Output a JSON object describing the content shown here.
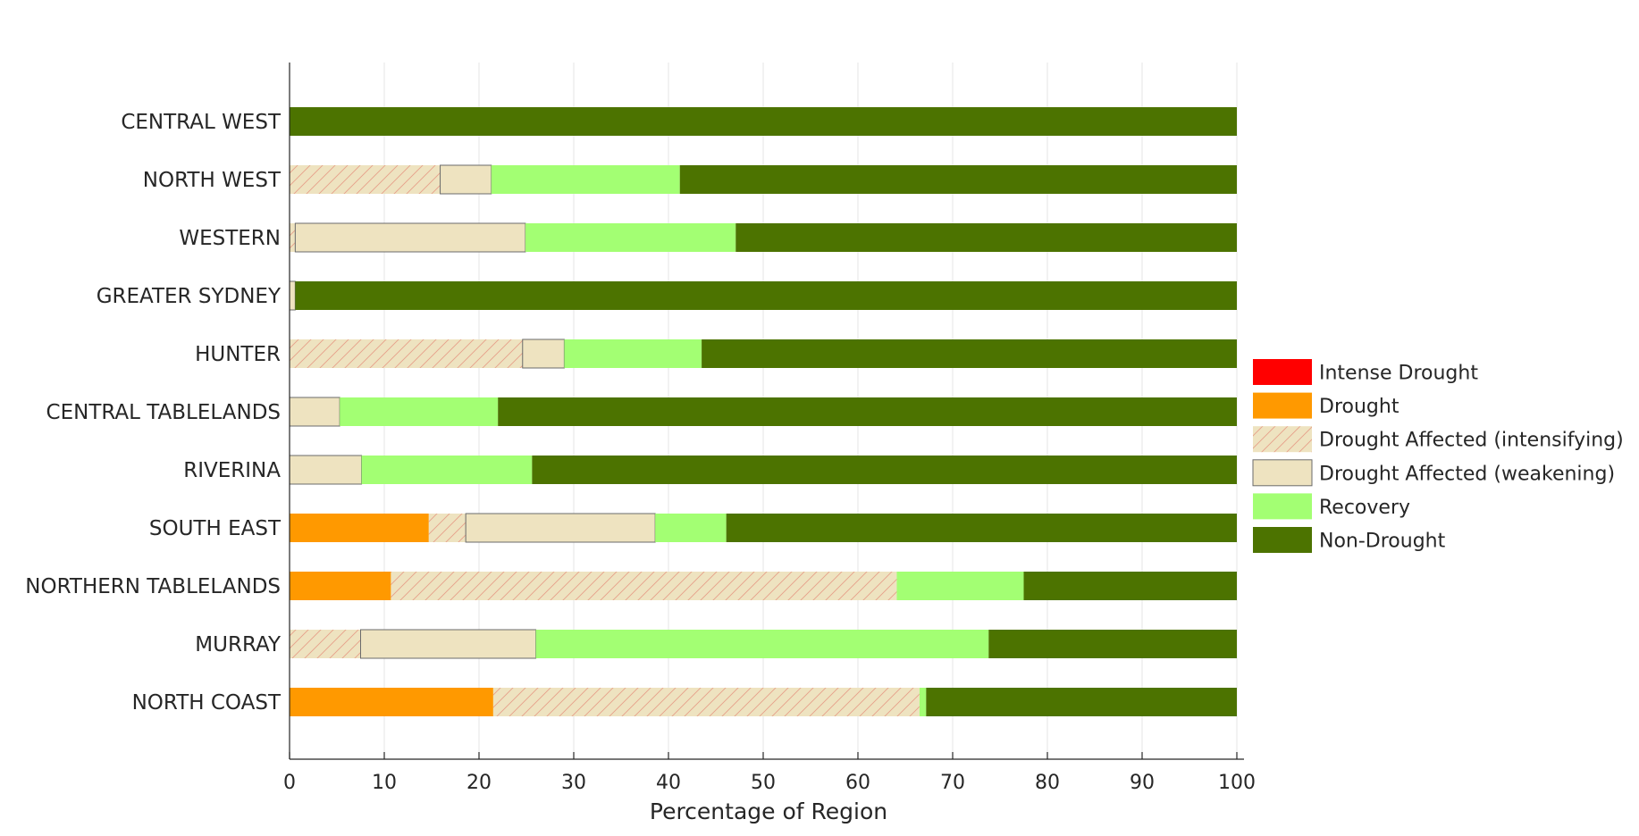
{
  "chart_data": {
    "type": "bar",
    "orientation": "horizontal",
    "stacked": true,
    "categories": [
      "CENTRAL WEST",
      "NORTH WEST",
      "WESTERN",
      "GREATER SYDNEY",
      "HUNTER",
      "CENTRAL TABLELANDS",
      "RIVERINA",
      "SOUTH EAST",
      "NORTHERN TABLELANDS",
      "MURRAY",
      "NORTH COAST"
    ],
    "series": [
      {
        "name": "Intense Drought",
        "color": "#ff0000",
        "pattern": "solid",
        "values": [
          0,
          0,
          0,
          0,
          0,
          0,
          0,
          0,
          0,
          0,
          0
        ]
      },
      {
        "name": "Drought",
        "color": "#ff9900",
        "pattern": "solid",
        "values": [
          0,
          0,
          0,
          0,
          0,
          0,
          0,
          14.7,
          10.7,
          0,
          21.5
        ]
      },
      {
        "name": "Drought Affected (intensifying)",
        "color": "#eee3c0",
        "pattern": "hatch",
        "values": [
          0,
          15.9,
          0.6,
          0,
          24.6,
          0,
          0,
          3.9,
          53.4,
          7.5,
          45.0
        ]
      },
      {
        "name": "Drought Affected (weakening)",
        "color": "#eee3c0",
        "pattern": "outlined",
        "values": [
          0,
          5.4,
          24.3,
          0.6,
          4.4,
          5.3,
          7.6,
          20.0,
          0,
          18.5,
          0
        ]
      },
      {
        "name": "Recovery",
        "color": "#a3ff73",
        "pattern": "solid",
        "values": [
          0,
          19.9,
          22.2,
          0,
          14.5,
          16.7,
          18.0,
          7.5,
          13.4,
          47.8,
          0.7
        ]
      },
      {
        "name": "Non-Drought",
        "color": "#4c7300",
        "pattern": "solid",
        "values": [
          100,
          58.8,
          52.9,
          99.4,
          56.5,
          78.0,
          74.4,
          53.9,
          22.5,
          26.2,
          32.8
        ]
      }
    ],
    "xlabel": "Percentage of Region",
    "xlim": [
      0,
      100
    ],
    "xticks": [
      0,
      10,
      20,
      30,
      40,
      50,
      60,
      70,
      80,
      90,
      100
    ],
    "grid": "x-major",
    "legend": "right"
  }
}
